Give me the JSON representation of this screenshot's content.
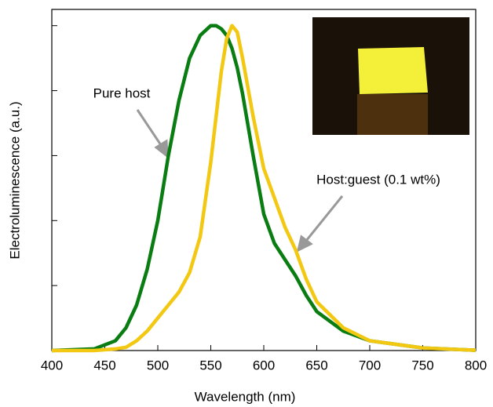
{
  "chart_data": {
    "type": "line",
    "xlabel": "Wavelength (nm)",
    "ylabel": "Electroluminescence (a.u.)",
    "x": [
      400,
      440,
      460,
      470,
      480,
      490,
      500,
      510,
      520,
      530,
      540,
      550,
      555,
      560,
      565,
      570,
      575,
      580,
      590,
      600,
      610,
      620,
      630,
      640,
      650,
      675,
      700,
      750,
      800
    ],
    "series": [
      {
        "name": "Pure host",
        "color": "#0a7d12",
        "values": [
          0,
          0.005,
          0.03,
          0.07,
          0.14,
          0.25,
          0.4,
          0.6,
          0.77,
          0.9,
          0.97,
          1.0,
          1.0,
          0.99,
          0.97,
          0.93,
          0.87,
          0.79,
          0.6,
          0.42,
          0.33,
          0.28,
          0.23,
          0.17,
          0.12,
          0.06,
          0.03,
          0.008,
          0.001
        ]
      },
      {
        "name": "Host:guest (0.1 wt%)",
        "color": "#f2c812",
        "values": [
          0,
          0,
          0.005,
          0.01,
          0.03,
          0.06,
          0.1,
          0.14,
          0.18,
          0.24,
          0.35,
          0.58,
          0.72,
          0.86,
          0.96,
          1.0,
          0.98,
          0.9,
          0.72,
          0.56,
          0.47,
          0.38,
          0.31,
          0.22,
          0.15,
          0.07,
          0.03,
          0.008,
          0.001
        ]
      }
    ],
    "xlim": [
      400,
      800
    ],
    "xticks": [
      400,
      450,
      500,
      550,
      600,
      650,
      700,
      750,
      800
    ],
    "ylim": [
      0,
      1.05
    ],
    "yticks": [
      0,
      0.2,
      0.4,
      0.6,
      0.8,
      1.0
    ]
  }
}
